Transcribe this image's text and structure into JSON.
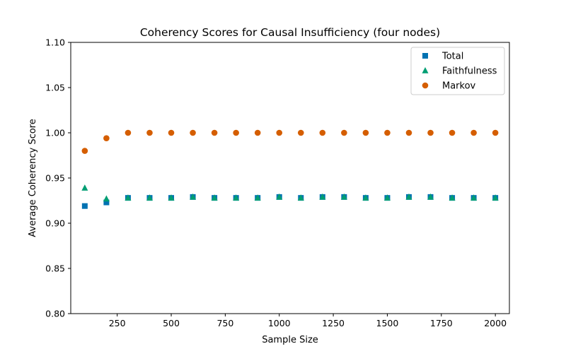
{
  "chart_data": {
    "type": "scatter",
    "title": "Coherency Scores for Causal Insufficiency (four nodes)",
    "xlabel": "Sample Size",
    "ylabel": "Average Coherency Score",
    "xlim": [
      35,
      2065
    ],
    "ylim": [
      0.8,
      1.1
    ],
    "x_ticks": [
      250,
      500,
      750,
      1000,
      1250,
      1500,
      1750,
      2000
    ],
    "x_tick_labels": [
      "250",
      "500",
      "750",
      "1000",
      "1250",
      "1500",
      "1750",
      "2000"
    ],
    "y_ticks": [
      0.8,
      0.85,
      0.9,
      0.95,
      1.0,
      1.05,
      1.1
    ],
    "y_tick_labels": [
      "0.80",
      "0.85",
      "0.90",
      "0.95",
      "1.00",
      "1.05",
      "1.10"
    ],
    "grid": false,
    "legend_position": "top-right",
    "x": [
      100,
      200,
      300,
      400,
      500,
      600,
      700,
      800,
      900,
      1000,
      1100,
      1200,
      1300,
      1400,
      1500,
      1600,
      1700,
      1800,
      1900,
      2000
    ],
    "series": [
      {
        "name": "Total",
        "marker": "square",
        "color": "#0072b2",
        "values": [
          0.919,
          0.923,
          0.928,
          0.928,
          0.928,
          0.929,
          0.928,
          0.928,
          0.928,
          0.929,
          0.928,
          0.929,
          0.929,
          0.928,
          0.928,
          0.929,
          0.929,
          0.928,
          0.928,
          0.928
        ]
      },
      {
        "name": "Faithfulness",
        "marker": "triangle",
        "color": "#009e73",
        "values": [
          0.939,
          0.927,
          0.928,
          0.928,
          0.928,
          0.929,
          0.928,
          0.928,
          0.928,
          0.929,
          0.928,
          0.929,
          0.929,
          0.928,
          0.928,
          0.929,
          0.929,
          0.928,
          0.928,
          0.928
        ]
      },
      {
        "name": "Markov",
        "marker": "circle",
        "color": "#d55e00",
        "values": [
          0.98,
          0.994,
          1.0,
          1.0,
          1.0,
          1.0,
          1.0,
          1.0,
          1.0,
          1.0,
          1.0,
          1.0,
          1.0,
          1.0,
          1.0,
          1.0,
          1.0,
          1.0,
          1.0,
          1.0
        ]
      }
    ]
  }
}
